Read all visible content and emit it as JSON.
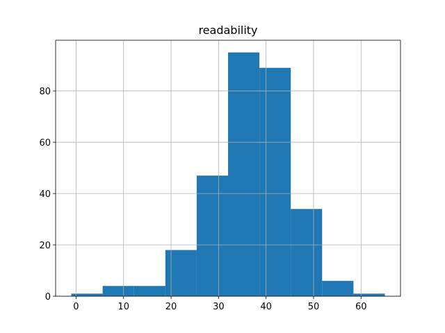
{
  "chart_data": {
    "type": "bar",
    "subtype": "histogram",
    "title": "readability",
    "xlabel": "",
    "ylabel": "",
    "bin_edges": [
      -1.0,
      5.6,
      12.2,
      18.8,
      25.4,
      32.0,
      38.6,
      45.2,
      51.8,
      58.4,
      65.0
    ],
    "values": [
      1,
      4,
      4,
      18,
      47,
      95,
      89,
      34,
      6,
      1
    ],
    "xlim": [
      -4.3,
      68.3
    ],
    "ylim": [
      0,
      99.75
    ],
    "xticks": [
      0,
      10,
      20,
      30,
      40,
      50,
      60
    ],
    "yticks": [
      0,
      20,
      40,
      60,
      80
    ],
    "grid": true,
    "bar_color": "#1f77b4",
    "grid_color": "#b0b0b0"
  }
}
